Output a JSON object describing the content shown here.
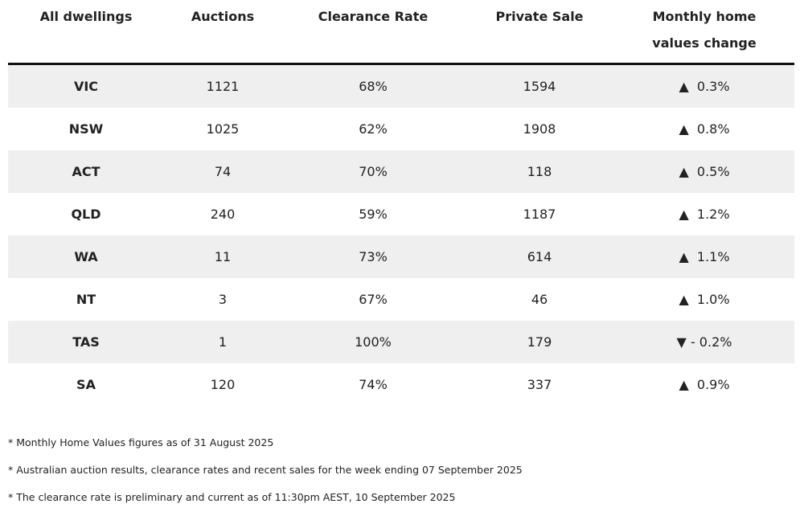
{
  "table": {
    "headers": [
      "All dwellings",
      "Auctions",
      "Clearance Rate",
      "Private Sale",
      "Monthly home values change"
    ],
    "rows": [
      [
        "VIC",
        "1121",
        "68%",
        "1594",
        "▲  0.3%"
      ],
      [
        "NSW",
        "1025",
        "62%",
        "1908",
        "▲  0.8%"
      ],
      [
        "ACT",
        "74",
        "70%",
        "118",
        "▲  0.5%"
      ],
      [
        "QLD",
        "240",
        "59%",
        "1187",
        "▲  1.2%"
      ],
      [
        "WA",
        "11",
        "73%",
        "614",
        "▲  1.1%"
      ],
      [
        "NT",
        "3",
        "67%",
        "46",
        "▲  1.0%"
      ],
      [
        "TAS",
        "1",
        "100%",
        "179",
        "▼ - 0.2%"
      ],
      [
        "SA",
        "120",
        "74%",
        "337",
        "▲  0.9%"
      ]
    ]
  },
  "notes": [
    "* Monthly Home Values figures as of 31 August 2025",
    "* Australian auction results, clearance rates and recent sales for the week ending 07 September 2025",
    "* The clearance rate is preliminary and current as of 11:30pm AEST, 10 September 2025"
  ]
}
